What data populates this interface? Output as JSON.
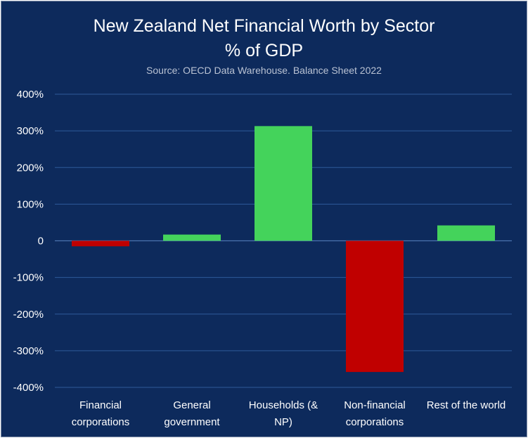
{
  "title_line1": "New Zealand Net Financial Worth by Sector",
  "title_line2": "% of GDP",
  "subtitle": "Source: OECD Data Warehouse. Balance Sheet 2022",
  "colors": {
    "background": "#0d2a5c",
    "positive": "#44d35b",
    "negative": "#c00000",
    "grid": "#2e5a9a",
    "text": "#ffffff"
  },
  "chart_data": {
    "type": "bar",
    "title": "New Zealand Net Financial Worth by Sector",
    "subtitle": "% of GDP",
    "source": "Source: OECD Data Warehouse. Balance Sheet 2022",
    "categories": [
      [
        "Financial",
        "corporations"
      ],
      [
        "General",
        "government"
      ],
      [
        "Households (&",
        "NP)"
      ],
      [
        "Non-financial",
        "corporations"
      ],
      [
        "Rest of the world"
      ]
    ],
    "values": [
      -15,
      17,
      313,
      -358,
      42
    ],
    "unit": "% of GDP",
    "ylim": [
      -400,
      400
    ],
    "yticks": [
      400,
      300,
      200,
      100,
      0,
      -100,
      -200,
      -300,
      -400
    ],
    "ytick_labels": [
      "400%",
      "300%",
      "200%",
      "100%",
      "0",
      "-100%",
      "-200%",
      "-300%",
      "-400%"
    ],
    "grid": true,
    "legend": "none"
  }
}
